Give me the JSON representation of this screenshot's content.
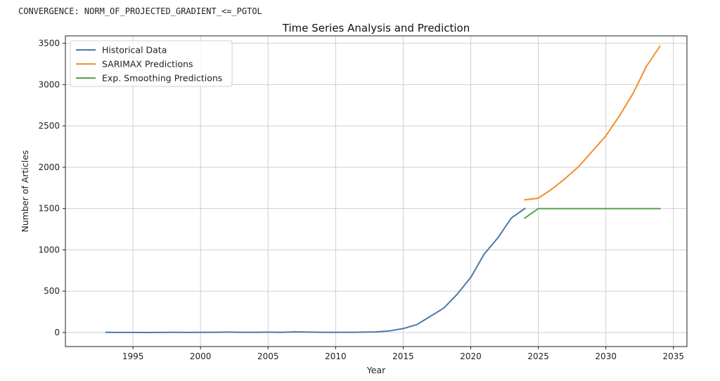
{
  "console": {
    "message": "CONVERGENCE: NORM_OF_PROJECTED_GRADIENT_<=_PGTOL"
  },
  "chart_data": {
    "type": "line",
    "title": "Time Series Analysis and Prediction",
    "xlabel": "Year",
    "ylabel": "Number of Articles",
    "xlim": [
      1990,
      2036
    ],
    "ylim": [
      -170,
      3590
    ],
    "xticks": [
      1995,
      2000,
      2005,
      2010,
      2015,
      2020,
      2025,
      2030,
      2035
    ],
    "yticks": [
      0,
      500,
      1000,
      1500,
      2000,
      2500,
      3000,
      3500
    ],
    "grid": true,
    "legend_position": "top-left",
    "series": [
      {
        "name": "Historical Data",
        "color": "#4c78a8",
        "x": [
          1993,
          1994,
          1995,
          1996,
          1997,
          1998,
          1999,
          2000,
          2001,
          2002,
          2003,
          2004,
          2005,
          2006,
          2007,
          2008,
          2009,
          2010,
          2011,
          2012,
          2013,
          2014,
          2015,
          2016,
          2017,
          2018,
          2019,
          2020,
          2021,
          2022,
          2023,
          2024
        ],
        "y": [
          2,
          1,
          1,
          0,
          1,
          3,
          1,
          2,
          3,
          5,
          2,
          3,
          4,
          3,
          8,
          5,
          3,
          2,
          2,
          4,
          8,
          20,
          48,
          95,
          195,
          295,
          465,
          665,
          950,
          1145,
          1385,
          1500
        ]
      },
      {
        "name": "SARIMAX Predictions",
        "color": "#f28e2b",
        "x": [
          2024,
          2025,
          2026,
          2027,
          2028,
          2029,
          2030,
          2031,
          2032,
          2033,
          2034
        ],
        "y": [
          1605,
          1625,
          1735,
          1865,
          2010,
          2195,
          2380,
          2620,
          2890,
          3220,
          3465
        ]
      },
      {
        "name": "Exp. Smoothing Predictions",
        "color": "#59a14f",
        "x": [
          2024,
          2025,
          2026,
          2027,
          2028,
          2029,
          2030,
          2031,
          2032,
          2033,
          2034
        ],
        "y": [
          1385,
          1500,
          1500,
          1500,
          1500,
          1500,
          1500,
          1500,
          1500,
          1500,
          1500
        ]
      }
    ]
  }
}
